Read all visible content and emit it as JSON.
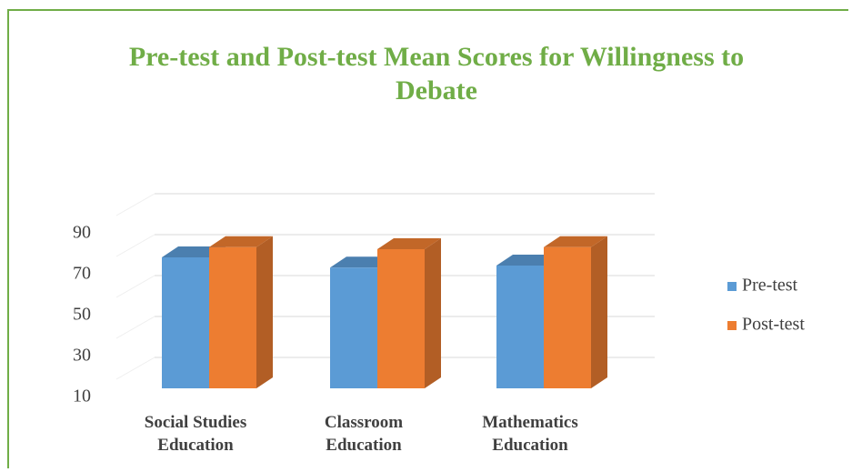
{
  "chart_data": {
    "type": "bar3d",
    "title": "Pre-test and Post-test Mean Scores for Willingness to Debate",
    "categories": [
      "Social Studies Education",
      "Classroom Education",
      "Mathematics Education"
    ],
    "series": [
      {
        "name": "Pre-test",
        "color": "#5b9bd5",
        "values": [
          74,
          69,
          70
        ]
      },
      {
        "name": "Post-test",
        "color": "#ed7d31",
        "values": [
          79,
          78,
          79
        ]
      }
    ],
    "ylim": [
      10,
      90
    ],
    "yticks": [
      10,
      30,
      50,
      70,
      90
    ],
    "grid": true,
    "legend": "right"
  }
}
